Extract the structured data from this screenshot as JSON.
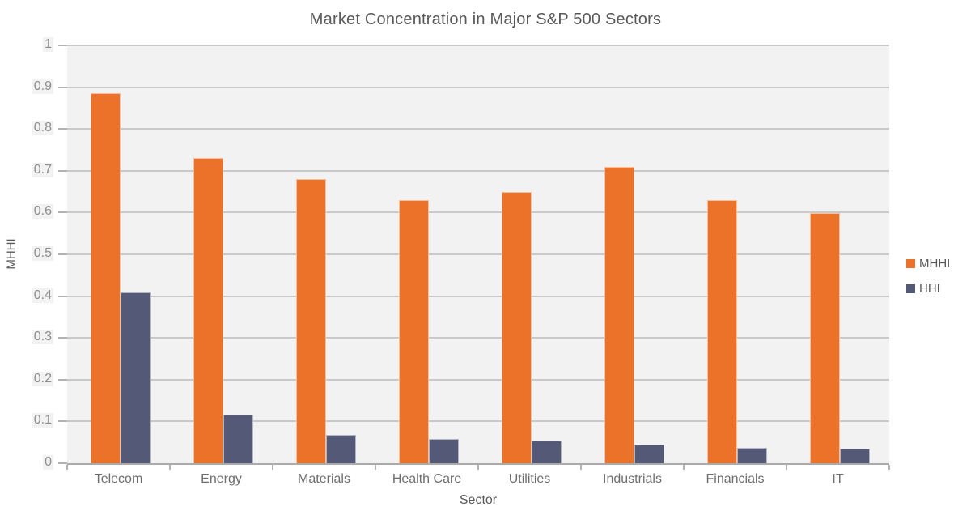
{
  "title": "Market Concentration in Major S&P 500 Sectors",
  "y_axis": {
    "title": "MHHI",
    "tick_labels": [
      "1",
      "0.9",
      "0.8",
      "0.7",
      "0.6",
      "0.5",
      "0.4",
      "0.3",
      "0.2",
      "0.1",
      "0"
    ]
  },
  "x_axis": {
    "title": "Sector"
  },
  "legend": {
    "position": "right-middle",
    "items": [
      {
        "label": "MHHI",
        "color": "#ec7229"
      },
      {
        "label": "HHI",
        "color": "#535976"
      }
    ]
  },
  "colors": {
    "mhhi_bar": "#ec7229",
    "hhi_bar": "#535976",
    "plot_background": "#f2f2f2",
    "gridline": "#c9c9c9",
    "axis_line": "#aaaaaa",
    "title_text": "#595959",
    "tick_text": "#8d8d8d"
  },
  "chart_data": {
    "type": "bar",
    "title": "Market Concentration in Major S&P 500 Sectors",
    "xlabel": "Sector",
    "ylabel": "MHHI",
    "ylim": [
      0,
      1
    ],
    "ytick_step": 0.1,
    "grid": true,
    "legend_position": "right-middle",
    "categories": [
      "Telecom",
      "Energy",
      "Materials",
      "Health Care",
      "Utilities",
      "Industrials",
      "Financials",
      "IT"
    ],
    "series": [
      {
        "name": "MHHI",
        "color": "#ec7229",
        "values": [
          0.885,
          0.73,
          0.68,
          0.63,
          0.65,
          0.71,
          0.63,
          0.598
        ]
      },
      {
        "name": "HHI",
        "color": "#535976",
        "values": [
          0.408,
          0.117,
          0.068,
          0.058,
          0.055,
          0.045,
          0.037,
          0.034
        ]
      }
    ]
  }
}
